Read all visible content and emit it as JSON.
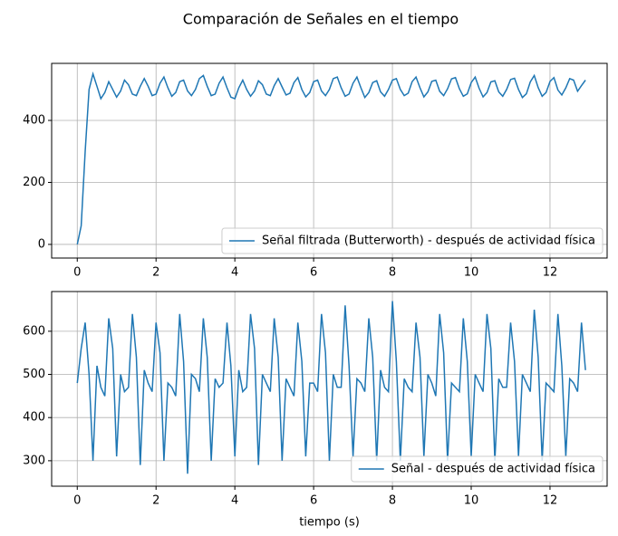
{
  "title": "Comparación de Señales en el tiempo",
  "chart_data": [
    {
      "type": "line",
      "xlim": [
        -0.65,
        13.45
      ],
      "ylim": [
        -44,
        584
      ],
      "xticks": [
        0,
        2,
        4,
        6,
        8,
        10,
        12
      ],
      "yticks": [
        0,
        200,
        400
      ],
      "grid": true,
      "legend": "lower right",
      "x": [
        0,
        0.1,
        0.2,
        0.3,
        0.4,
        0.5,
        0.6,
        0.7,
        0.8,
        0.9,
        1,
        1.1,
        1.2,
        1.3,
        1.4,
        1.5,
        1.6,
        1.7,
        1.8,
        1.9,
        2,
        2.1,
        2.2,
        2.3,
        2.4,
        2.5,
        2.6,
        2.7,
        2.8,
        2.9,
        3,
        3.1,
        3.2,
        3.3,
        3.4,
        3.5,
        3.6,
        3.7,
        3.8,
        3.9,
        4,
        4.1,
        4.2,
        4.3,
        4.4,
        4.5,
        4.6,
        4.7,
        4.8,
        4.9,
        5,
        5.1,
        5.2,
        5.3,
        5.4,
        5.5,
        5.6,
        5.7,
        5.8,
        5.9,
        6,
        6.1,
        6.2,
        6.3,
        6.4,
        6.5,
        6.6,
        6.7,
        6.8,
        6.9,
        7,
        7.1,
        7.2,
        7.3,
        7.4,
        7.5,
        7.6,
        7.7,
        7.8,
        7.9,
        8,
        8.1,
        8.2,
        8.3,
        8.4,
        8.5,
        8.6,
        8.7,
        8.8,
        8.9,
        9,
        9.1,
        9.2,
        9.3,
        9.4,
        9.5,
        9.6,
        9.7,
        9.8,
        9.9,
        10,
        10.1,
        10.2,
        10.3,
        10.4,
        10.5,
        10.6,
        10.7,
        10.8,
        10.9,
        11,
        11.1,
        11.2,
        11.3,
        11.4,
        11.5,
        11.6,
        11.7,
        11.8,
        11.9,
        12,
        12.1,
        12.2,
        12.3,
        12.4,
        12.5,
        12.6,
        12.7,
        12.8,
        12.9
      ],
      "series": [
        {
          "name": "Señal filtrada (Butterworth) - después de actividad física",
          "color": "#1f77b4",
          "values": [
            0,
            60,
            300,
            500,
            550,
            510,
            470,
            490,
            525,
            500,
            475,
            495,
            530,
            515,
            485,
            480,
            510,
            535,
            510,
            480,
            485,
            520,
            540,
            505,
            478,
            490,
            525,
            530,
            495,
            480,
            500,
            535,
            545,
            510,
            480,
            485,
            520,
            540,
            505,
            475,
            470,
            505,
            530,
            500,
            478,
            495,
            528,
            515,
            485,
            480,
            512,
            535,
            508,
            482,
            488,
            522,
            538,
            500,
            476,
            490,
            525,
            530,
            495,
            480,
            500,
            535,
            540,
            505,
            478,
            485,
            520,
            540,
            505,
            474,
            490,
            522,
            528,
            492,
            478,
            500,
            530,
            535,
            500,
            480,
            488,
            525,
            540,
            505,
            476,
            492,
            526,
            530,
            494,
            480,
            502,
            534,
            538,
            502,
            478,
            486,
            522,
            540,
            504,
            476,
            490,
            524,
            528,
            492,
            478,
            500,
            532,
            536,
            500,
            474,
            486,
            524,
            545,
            506,
            478,
            490,
            526,
            538,
            498,
            482,
            505,
            535,
            530,
            494,
            512,
            530
          ]
        }
      ]
    },
    {
      "type": "line",
      "xlim": [
        -0.65,
        13.45
      ],
      "ylim": [
        241,
        692
      ],
      "xticks": [
        0,
        2,
        4,
        6,
        8,
        10,
        12
      ],
      "yticks": [
        300,
        400,
        500,
        600
      ],
      "grid": true,
      "legend": "lower right",
      "xlabel": "tiempo (s)",
      "x": [
        0,
        0.1,
        0.2,
        0.3,
        0.4,
        0.5,
        0.6,
        0.7,
        0.8,
        0.9,
        1,
        1.1,
        1.2,
        1.3,
        1.4,
        1.5,
        1.6,
        1.7,
        1.8,
        1.9,
        2,
        2.1,
        2.2,
        2.3,
        2.4,
        2.5,
        2.6,
        2.7,
        2.8,
        2.9,
        3,
        3.1,
        3.2,
        3.3,
        3.4,
        3.5,
        3.6,
        3.7,
        3.8,
        3.9,
        4,
        4.1,
        4.2,
        4.3,
        4.4,
        4.5,
        4.6,
        4.7,
        4.8,
        4.9,
        5,
        5.1,
        5.2,
        5.3,
        5.4,
        5.5,
        5.6,
        5.7,
        5.8,
        5.9,
        6,
        6.1,
        6.2,
        6.3,
        6.4,
        6.5,
        6.6,
        6.7,
        6.8,
        6.9,
        7,
        7.1,
        7.2,
        7.3,
        7.4,
        7.5,
        7.6,
        7.7,
        7.8,
        7.9,
        8,
        8.1,
        8.2,
        8.3,
        8.4,
        8.5,
        8.6,
        8.7,
        8.8,
        8.9,
        9,
        9.1,
        9.2,
        9.3,
        9.4,
        9.5,
        9.6,
        9.7,
        9.8,
        9.9,
        10,
        10.1,
        10.2,
        10.3,
        10.4,
        10.5,
        10.6,
        10.7,
        10.8,
        10.9,
        11,
        11.1,
        11.2,
        11.3,
        11.4,
        11.5,
        11.6,
        11.7,
        11.8,
        11.9,
        12,
        12.1,
        12.2,
        12.3,
        12.4,
        12.5,
        12.6,
        12.7,
        12.8,
        12.9
      ],
      "series": [
        {
          "name": "Señal - después de actividad física",
          "color": "#1f77b4",
          "values": [
            480,
            560,
            620,
            500,
            300,
            520,
            470,
            450,
            630,
            560,
            310,
            500,
            460,
            470,
            640,
            540,
            290,
            510,
            480,
            460,
            620,
            550,
            300,
            480,
            470,
            450,
            640,
            530,
            270,
            500,
            490,
            460,
            630,
            540,
            300,
            490,
            470,
            480,
            620,
            520,
            310,
            510,
            460,
            470,
            640,
            560,
            290,
            500,
            480,
            460,
            630,
            540,
            300,
            490,
            470,
            450,
            620,
            530,
            310,
            480,
            480,
            460,
            640,
            550,
            300,
            500,
            470,
            470,
            660,
            520,
            310,
            490,
            480,
            460,
            630,
            540,
            300,
            510,
            470,
            460,
            670,
            530,
            300,
            490,
            470,
            460,
            620,
            540,
            310,
            500,
            480,
            450,
            640,
            550,
            300,
            480,
            470,
            460,
            630,
            530,
            310,
            500,
            480,
            460,
            640,
            560,
            300,
            490,
            470,
            470,
            620,
            530,
            310,
            500,
            480,
            460,
            650,
            540,
            300,
            480,
            470,
            460,
            640,
            520,
            310,
            490,
            480,
            460,
            620,
            510
          ]
        }
      ]
    }
  ]
}
